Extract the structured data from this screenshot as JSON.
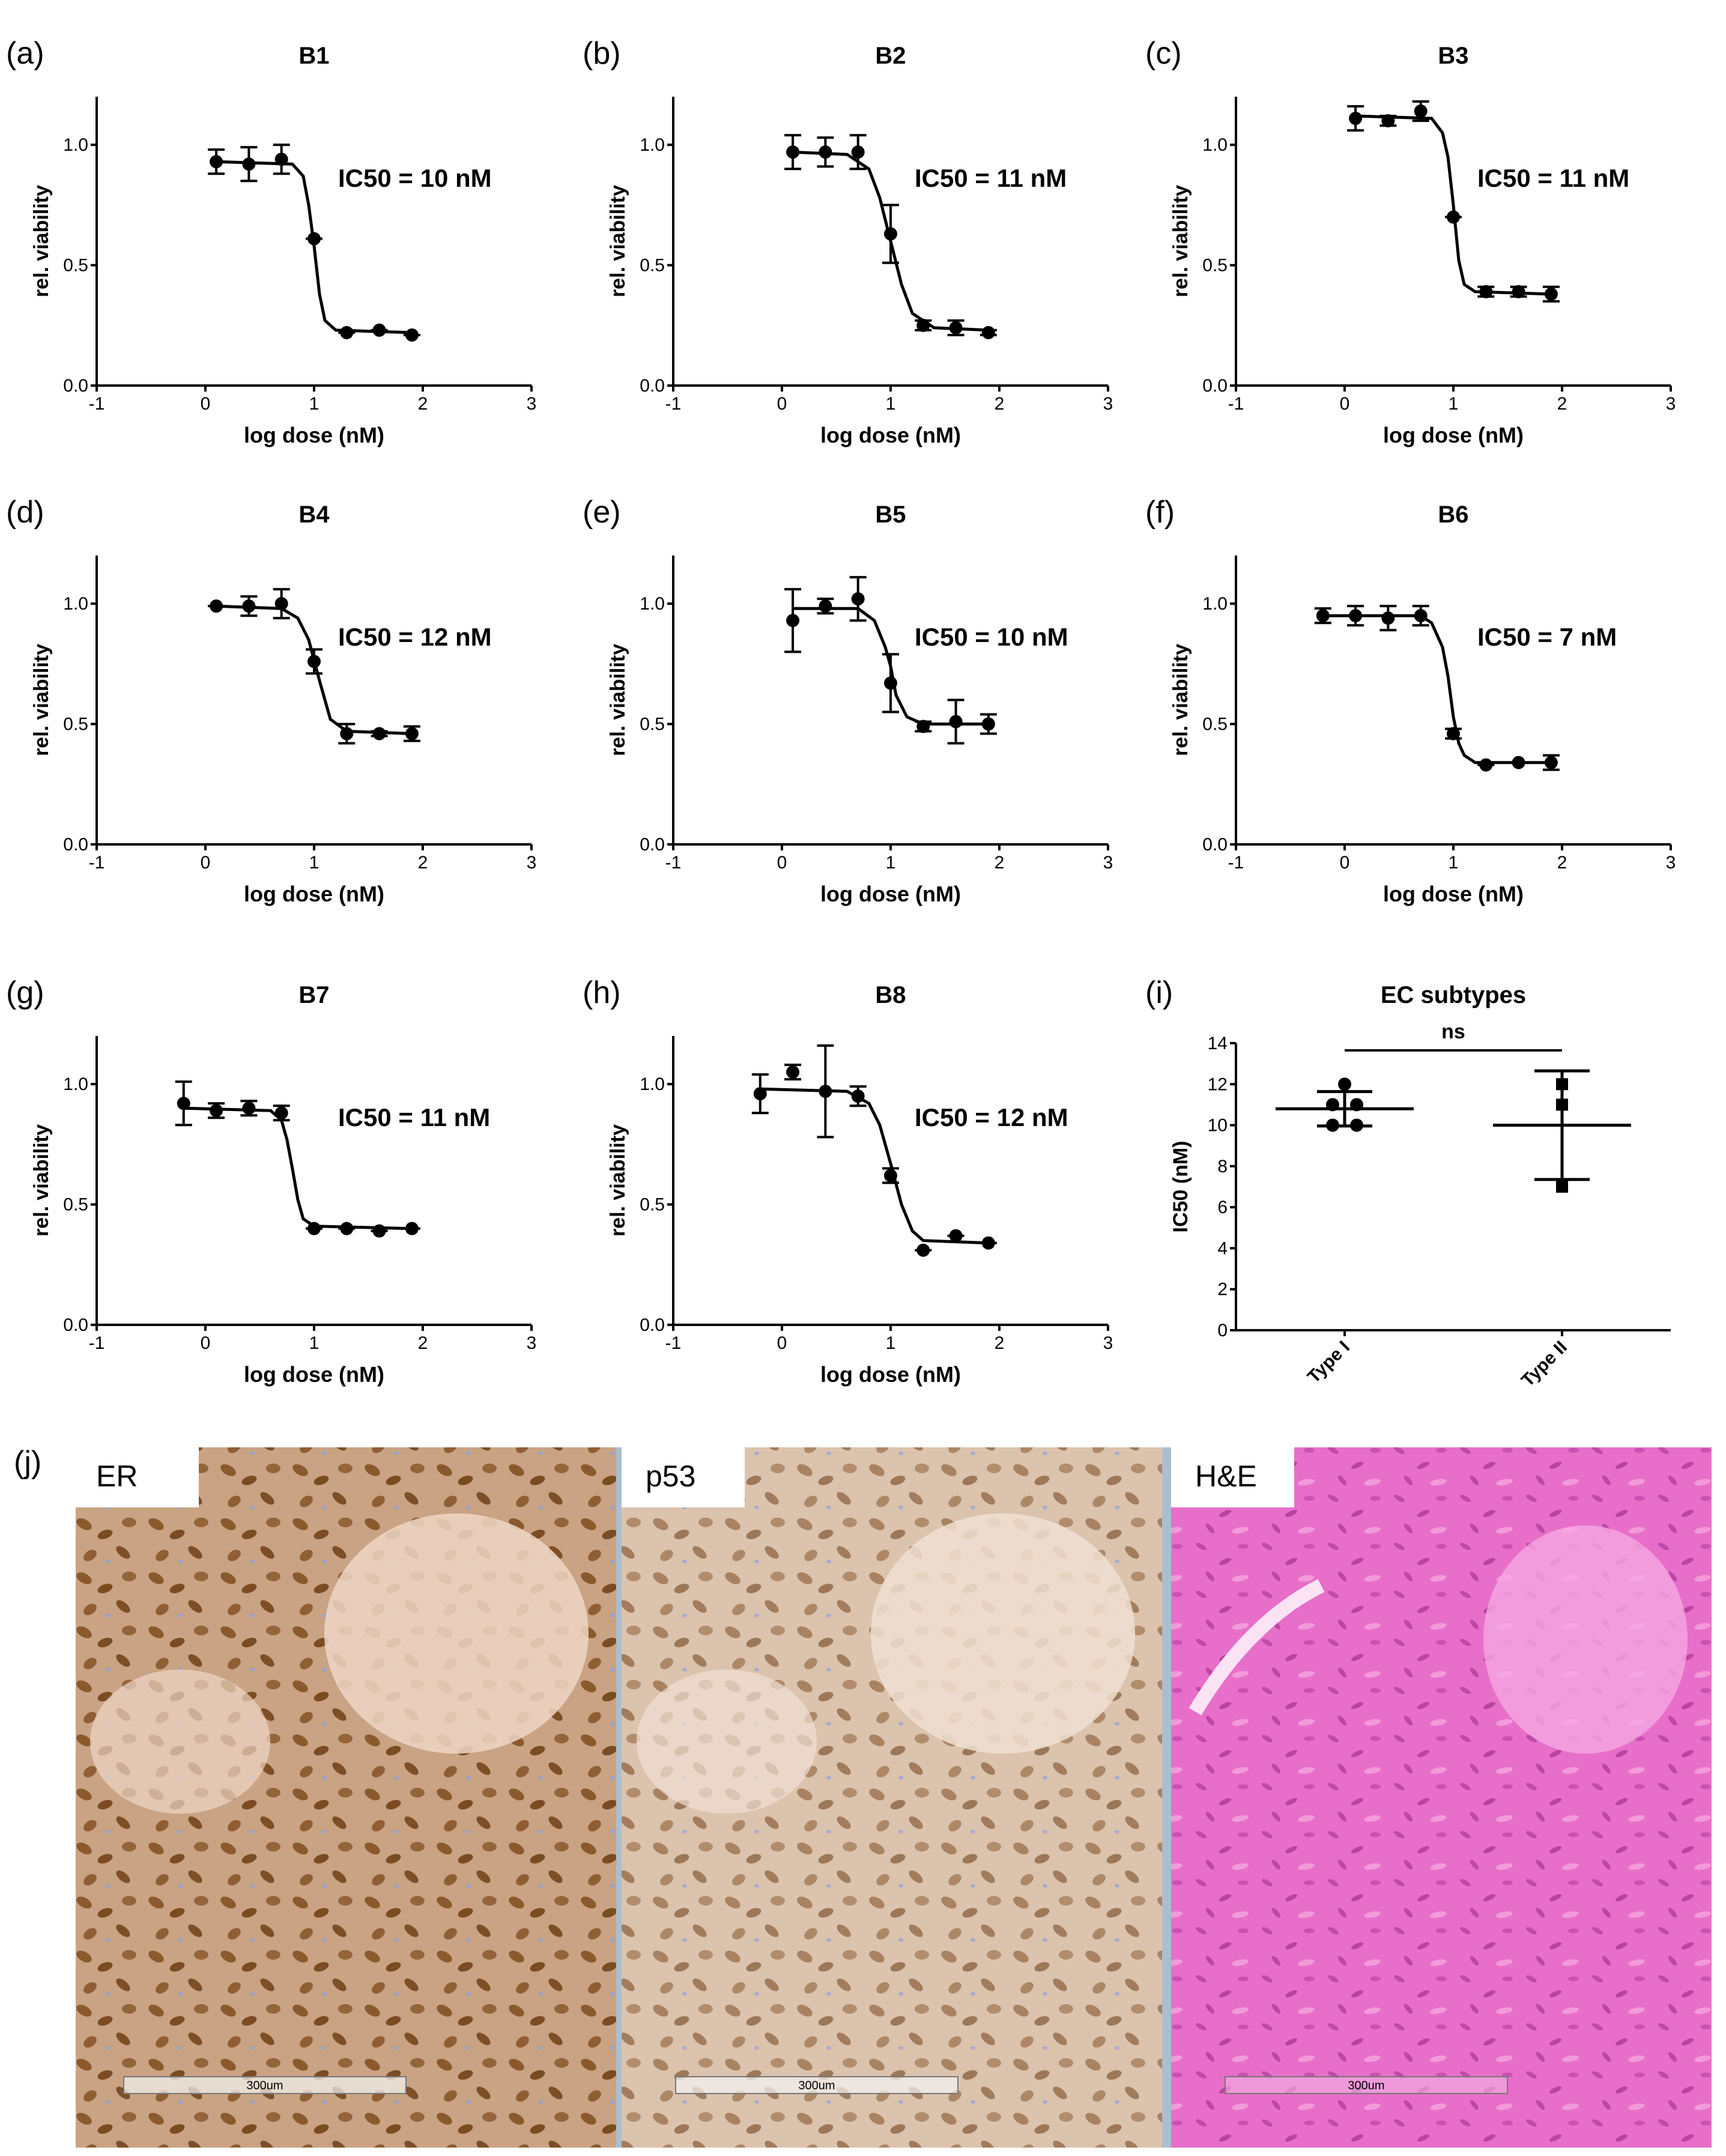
{
  "chart_data": [
    {
      "type": "scatter",
      "panel": "(a)",
      "title": "B1",
      "annotation": "IC50 = 10 nM",
      "x_label": "log dose (nM)",
      "y_label": "rel. viability",
      "x": [
        0.1,
        0.4,
        0.7,
        1.0,
        1.3,
        1.6,
        1.9
      ],
      "values": [
        0.93,
        0.92,
        0.94,
        0.61,
        0.22,
        0.23,
        0.21
      ],
      "errors": [
        0.05,
        0.07,
        0.06,
        0,
        0,
        0,
        0
      ],
      "fit": {
        "x": [
          0.1,
          0.8,
          0.9,
          0.95,
          1.0,
          1.05,
          1.1,
          1.2,
          1.9
        ],
        "values": [
          0.93,
          0.92,
          0.87,
          0.75,
          0.58,
          0.38,
          0.27,
          0.23,
          0.22
        ]
      },
      "xlim": [
        -1,
        3
      ],
      "xticks": [
        -1,
        0,
        1,
        2,
        3
      ],
      "ylim": [
        0,
        1.2
      ],
      "yticks": [
        {
          "value": 0,
          "label": "0.0"
        },
        {
          "value": 0.5,
          "label": "0.5"
        },
        {
          "value": 1,
          "label": "1.0"
        }
      ],
      "color": "#000000"
    },
    {
      "type": "scatter",
      "panel": "(b)",
      "title": "B2",
      "annotation": "IC50 = 11 nM",
      "x_label": "log dose (nM)",
      "y_label": "rel. viability",
      "x": [
        0.1,
        0.4,
        0.7,
        1.0,
        1.3,
        1.6,
        1.9
      ],
      "values": [
        0.97,
        0.97,
        0.97,
        0.63,
        0.25,
        0.24,
        0.22
      ],
      "errors": [
        0.07,
        0.06,
        0.07,
        0.12,
        0.02,
        0.03,
        0.01
      ],
      "fit": {
        "x": [
          0.1,
          0.6,
          0.8,
          0.9,
          1.0,
          1.1,
          1.2,
          1.4,
          1.9
        ],
        "values": [
          0.97,
          0.96,
          0.9,
          0.78,
          0.6,
          0.42,
          0.3,
          0.24,
          0.23
        ]
      },
      "xlim": [
        -1,
        3
      ],
      "xticks": [
        -1,
        0,
        1,
        2,
        3
      ],
      "ylim": [
        0,
        1.2
      ],
      "yticks": [
        {
          "value": 0,
          "label": "0.0"
        },
        {
          "value": 0.5,
          "label": "0.5"
        },
        {
          "value": 1,
          "label": "1.0"
        }
      ],
      "color": "#000000"
    },
    {
      "type": "scatter",
      "panel": "(c)",
      "title": "B3",
      "annotation": "IC50 = 11 nM",
      "x_label": "log dose (nM)",
      "y_label": "rel. viability",
      "x": [
        0.1,
        0.4,
        0.7,
        1.0,
        1.3,
        1.6,
        1.9
      ],
      "values": [
        1.11,
        1.1,
        1.14,
        0.7,
        0.39,
        0.39,
        0.38
      ],
      "errors": [
        0.05,
        0.02,
        0.04,
        0,
        0.02,
        0.02,
        0.03
      ],
      "fit": {
        "x": [
          0.1,
          0.8,
          0.9,
          0.95,
          1.0,
          1.05,
          1.1,
          1.2,
          1.9
        ],
        "values": [
          1.12,
          1.11,
          1.05,
          0.95,
          0.75,
          0.52,
          0.42,
          0.39,
          0.38
        ]
      },
      "xlim": [
        -1,
        3
      ],
      "xticks": [
        -1,
        0,
        1,
        2,
        3
      ],
      "ylim": [
        0,
        1.2
      ],
      "yticks": [
        {
          "value": 0,
          "label": "0.0"
        },
        {
          "value": 0.5,
          "label": "0.5"
        },
        {
          "value": 1,
          "label": "1.0"
        }
      ],
      "color": "#000000"
    },
    {
      "type": "scatter",
      "panel": "(d)",
      "title": "B4",
      "annotation": "IC50 = 12 nM",
      "x_label": "log dose (nM)",
      "y_label": "rel. viability",
      "x": [
        0.1,
        0.4,
        0.7,
        1.0,
        1.3,
        1.6,
        1.9
      ],
      "values": [
        0.99,
        0.99,
        1.0,
        0.76,
        0.46,
        0.46,
        0.46
      ],
      "errors": [
        0,
        0.04,
        0.06,
        0.05,
        0.04,
        0.01,
        0.03
      ],
      "fit": {
        "x": [
          0.1,
          0.7,
          0.85,
          0.95,
          1.05,
          1.15,
          1.3,
          1.9
        ],
        "values": [
          0.99,
          0.98,
          0.94,
          0.85,
          0.68,
          0.52,
          0.47,
          0.46
        ]
      },
      "xlim": [
        -1,
        3
      ],
      "xticks": [
        -1,
        0,
        1,
        2,
        3
      ],
      "ylim": [
        0,
        1.2
      ],
      "yticks": [
        {
          "value": 0,
          "label": "0.0"
        },
        {
          "value": 0.5,
          "label": "0.5"
        },
        {
          "value": 1,
          "label": "1.0"
        }
      ],
      "color": "#000000"
    },
    {
      "type": "scatter",
      "panel": "(e)",
      "title": "B5",
      "annotation": "IC50 = 10 nM",
      "x_label": "log dose (nM)",
      "y_label": "rel. viability",
      "x": [
        0.1,
        0.4,
        0.7,
        1.0,
        1.3,
        1.6,
        1.9
      ],
      "values": [
        0.93,
        0.99,
        1.02,
        0.67,
        0.49,
        0.51,
        0.5
      ],
      "errors": [
        0.13,
        0.03,
        0.09,
        0.12,
        0.02,
        0.09,
        0.04
      ],
      "fit": {
        "x": [
          0.1,
          0.7,
          0.85,
          0.95,
          1.0,
          1.05,
          1.15,
          1.3,
          1.9
        ],
        "values": [
          0.98,
          0.98,
          0.93,
          0.82,
          0.74,
          0.62,
          0.53,
          0.5,
          0.5
        ]
      },
      "xlim": [
        -1,
        3
      ],
      "xticks": [
        -1,
        0,
        1,
        2,
        3
      ],
      "ylim": [
        0,
        1.2
      ],
      "yticks": [
        {
          "value": 0,
          "label": "0.0"
        },
        {
          "value": 0.5,
          "label": "0.5"
        },
        {
          "value": 1,
          "label": "1.0"
        }
      ],
      "color": "#000000"
    },
    {
      "type": "scatter",
      "panel": "(f)",
      "title": "B6",
      "annotation": "IC50 = 7 nM",
      "x_label": "log dose (nM)",
      "y_label": "rel. viability",
      "x": [
        -0.2,
        0.1,
        0.4,
        0.7,
        1.0,
        1.3,
        1.6,
        1.9
      ],
      "values": [
        0.95,
        0.95,
        0.94,
        0.95,
        0.46,
        0.33,
        0.34,
        0.34
      ],
      "errors": [
        0.03,
        0.04,
        0.05,
        0.04,
        0.02,
        0,
        0,
        0.03
      ],
      "fit": {
        "x": [
          -0.2,
          0.7,
          0.8,
          0.9,
          0.95,
          1.0,
          1.05,
          1.1,
          1.2,
          1.9
        ],
        "values": [
          0.95,
          0.95,
          0.92,
          0.82,
          0.7,
          0.53,
          0.42,
          0.37,
          0.34,
          0.34
        ]
      },
      "xlim": [
        -1,
        3
      ],
      "xticks": [
        -1,
        0,
        1,
        2,
        3
      ],
      "ylim": [
        0,
        1.2
      ],
      "yticks": [
        {
          "value": 0,
          "label": "0.0"
        },
        {
          "value": 0.5,
          "label": "0.5"
        },
        {
          "value": 1,
          "label": "1.0"
        }
      ],
      "color": "#000000"
    },
    {
      "type": "scatter",
      "panel": "(g)",
      "title": "B7",
      "annotation": "IC50 = 11 nM",
      "x_label": "log dose (nM)",
      "y_label": "rel. viability",
      "x": [
        -0.2,
        0.1,
        0.4,
        0.7,
        1.0,
        1.3,
        1.6,
        1.9
      ],
      "values": [
        0.92,
        0.89,
        0.9,
        0.88,
        0.4,
        0.4,
        0.39,
        0.4
      ],
      "errors": [
        0.09,
        0.03,
        0.03,
        0.03,
        0,
        0,
        0,
        0
      ],
      "fit": {
        "x": [
          -0.2,
          0.6,
          0.7,
          0.75,
          0.8,
          0.85,
          0.9,
          1.0,
          1.9
        ],
        "values": [
          0.9,
          0.89,
          0.85,
          0.77,
          0.65,
          0.52,
          0.44,
          0.41,
          0.4
        ]
      },
      "xlim": [
        -1,
        3
      ],
      "xticks": [
        -1,
        0,
        1,
        2,
        3
      ],
      "ylim": [
        0,
        1.2
      ],
      "yticks": [
        {
          "value": 0,
          "label": "0.0"
        },
        {
          "value": 0.5,
          "label": "0.5"
        },
        {
          "value": 1,
          "label": "1.0"
        }
      ],
      "color": "#000000"
    },
    {
      "type": "scatter",
      "panel": "(h)",
      "title": "B8",
      "annotation": "IC50 = 12 nM",
      "x_label": "log dose (nM)",
      "y_label": "rel. viability",
      "x": [
        -0.2,
        0.1,
        0.4,
        0.7,
        1.0,
        1.3,
        1.6,
        1.9
      ],
      "values": [
        0.96,
        1.05,
        0.97,
        0.95,
        0.62,
        0.31,
        0.37,
        0.34
      ],
      "errors": [
        0.08,
        0.03,
        0.19,
        0.04,
        0.03,
        0,
        0,
        0
      ],
      "fit": {
        "x": [
          -0.2,
          0.6,
          0.8,
          0.9,
          1.0,
          1.1,
          1.2,
          1.3,
          1.9
        ],
        "values": [
          0.98,
          0.97,
          0.92,
          0.83,
          0.67,
          0.5,
          0.39,
          0.35,
          0.34
        ]
      },
      "xlim": [
        -1,
        3
      ],
      "xticks": [
        -1,
        0,
        1,
        2,
        3
      ],
      "ylim": [
        0,
        1.2
      ],
      "yticks": [
        {
          "value": 0,
          "label": "0.0"
        },
        {
          "value": 0.5,
          "label": "0.5"
        },
        {
          "value": 1,
          "label": "1.0"
        }
      ],
      "color": "#000000"
    },
    {
      "type": "dot",
      "panel": "(i)",
      "title": "EC subtypes",
      "annotation": "ns",
      "y_label": "IC50 (nM)",
      "categories": [
        "Type I",
        "Type II"
      ],
      "points": [
        [
          10,
          10,
          11,
          11,
          12
        ],
        [
          7,
          11,
          12
        ]
      ],
      "mean": [
        10.8,
        10
      ],
      "sd": [
        0.84,
        2.65
      ],
      "markers": [
        "circle",
        "square"
      ],
      "ylim": [
        0,
        14
      ],
      "yticks": [
        0,
        2,
        4,
        6,
        8,
        10,
        12,
        14
      ],
      "color": "#000000"
    }
  ],
  "figure": {
    "panel": "(j)",
    "images": [
      {
        "label": "ER",
        "scale": "300um"
      },
      {
        "label": "p53",
        "scale": "300um"
      },
      {
        "label": "H&E",
        "scale": "300um"
      }
    ]
  }
}
